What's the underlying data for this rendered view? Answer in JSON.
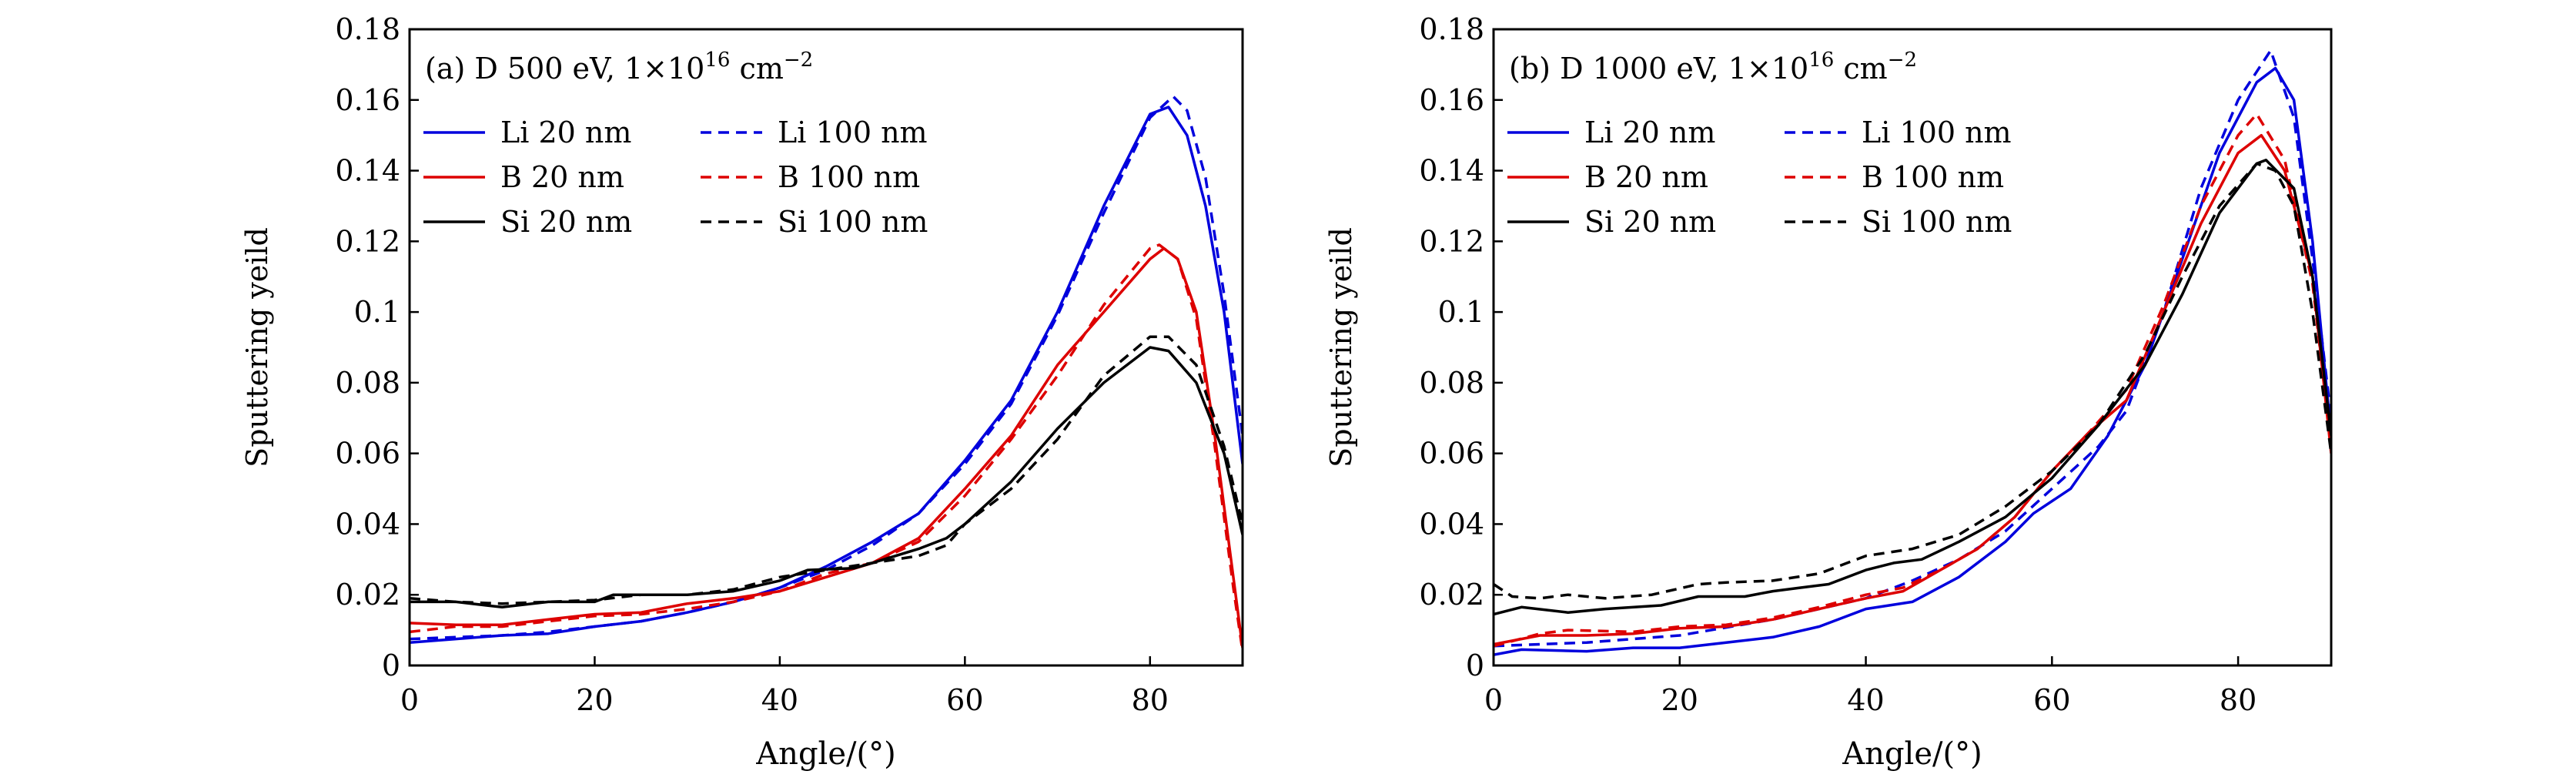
{
  "chart_data": [
    {
      "type": "line",
      "title_label": "(a)",
      "title_main": "D 500 eV, 1×10",
      "title_sup1": "16",
      "title_unit": " cm",
      "title_sup2": "−2",
      "xlabel": "Angle/(°)",
      "ylabel": "Sputtering yeild",
      "xlim": [
        0,
        90
      ],
      "ylim": [
        0,
        0.18
      ],
      "xticks": [
        0,
        20,
        40,
        60,
        80
      ],
      "yticks": [
        0,
        0.02,
        0.04,
        0.06,
        0.08,
        0.1,
        0.12,
        0.14,
        0.16,
        0.18
      ],
      "ytick_labels": [
        "0",
        "0.02",
        "0.04",
        "0.06",
        "0.08",
        "0.1",
        "0.12",
        "0.14",
        "0.16",
        "0.18"
      ],
      "grid": false,
      "legend": "top-left",
      "series": [
        {
          "name": "Li 20 nm",
          "color": "#0000dd",
          "dash": false,
          "x": [
            0,
            5,
            10,
            15,
            20,
            25,
            30,
            35,
            40,
            45,
            50,
            55,
            60,
            65,
            70,
            75,
            80,
            82,
            84,
            86,
            88,
            90
          ],
          "y": [
            0.0065,
            0.0075,
            0.0085,
            0.009,
            0.011,
            0.0125,
            0.015,
            0.018,
            0.022,
            0.028,
            0.035,
            0.043,
            0.058,
            0.075,
            0.1,
            0.13,
            0.156,
            0.158,
            0.15,
            0.13,
            0.1,
            0.057
          ]
        },
        {
          "name": "Li 100 nm",
          "color": "#0000dd",
          "dash": true,
          "x": [
            0,
            5,
            10,
            15,
            20,
            25,
            30,
            35,
            40,
            45,
            50,
            55,
            60,
            65,
            70,
            75,
            80,
            82.5,
            84,
            86,
            88,
            90
          ],
          "y": [
            0.0075,
            0.008,
            0.0085,
            0.0095,
            0.011,
            0.0125,
            0.015,
            0.018,
            0.022,
            0.027,
            0.034,
            0.043,
            0.057,
            0.074,
            0.099,
            0.128,
            0.155,
            0.161,
            0.157,
            0.138,
            0.105,
            0.065
          ]
        },
        {
          "name": "B 20 nm",
          "color": "#dd0000",
          "dash": false,
          "x": [
            0,
            5,
            10,
            15,
            20,
            25,
            30,
            35,
            40,
            45,
            50,
            55,
            60,
            65,
            70,
            75,
            80,
            81.5,
            83,
            85,
            87,
            89,
            90
          ],
          "y": [
            0.012,
            0.0115,
            0.0115,
            0.013,
            0.0145,
            0.015,
            0.0175,
            0.019,
            0.021,
            0.025,
            0.029,
            0.036,
            0.05,
            0.065,
            0.085,
            0.1,
            0.115,
            0.118,
            0.115,
            0.1,
            0.065,
            0.025,
            0.005
          ]
        },
        {
          "name": "B 100 nm",
          "color": "#dd0000",
          "dash": true,
          "x": [
            0,
            5,
            10,
            15,
            20,
            25,
            30,
            35,
            40,
            45,
            50,
            55,
            60,
            65,
            70,
            75,
            80,
            81,
            83,
            85,
            87,
            89,
            90
          ],
          "y": [
            0.0095,
            0.011,
            0.011,
            0.0125,
            0.014,
            0.0145,
            0.016,
            0.018,
            0.021,
            0.026,
            0.029,
            0.035,
            0.048,
            0.064,
            0.082,
            0.102,
            0.118,
            0.119,
            0.115,
            0.098,
            0.062,
            0.022,
            0.004
          ]
        },
        {
          "name": "Si 20 nm",
          "color": "#000000",
          "dash": false,
          "x": [
            0,
            5,
            10,
            15,
            20,
            22,
            30,
            35,
            40,
            43,
            48,
            50,
            55,
            58,
            60,
            65,
            70,
            75,
            80,
            82,
            85,
            88,
            90
          ],
          "y": [
            0.018,
            0.018,
            0.0165,
            0.018,
            0.018,
            0.02,
            0.02,
            0.021,
            0.024,
            0.027,
            0.0275,
            0.029,
            0.033,
            0.036,
            0.04,
            0.052,
            0.067,
            0.08,
            0.09,
            0.089,
            0.08,
            0.06,
            0.037
          ]
        },
        {
          "name": "Si 100 nm",
          "color": "#000000",
          "dash": true,
          "x": [
            0,
            5,
            10,
            15,
            20,
            25,
            30,
            35,
            40,
            45,
            50,
            55,
            58,
            60,
            65,
            70,
            75,
            80,
            82,
            85,
            88,
            90
          ],
          "y": [
            0.019,
            0.018,
            0.0175,
            0.018,
            0.0185,
            0.02,
            0.02,
            0.0215,
            0.025,
            0.027,
            0.029,
            0.031,
            0.034,
            0.04,
            0.05,
            0.064,
            0.082,
            0.093,
            0.093,
            0.085,
            0.062,
            0.04
          ]
        }
      ]
    },
    {
      "type": "line",
      "title_label": "(b)",
      "title_main": "D 1000 eV, 1×10",
      "title_sup1": "16",
      "title_unit": " cm",
      "title_sup2": "−2",
      "xlabel": "Angle/(°)",
      "ylabel": "Sputtering yeild",
      "xlim": [
        0,
        90
      ],
      "ylim": [
        0,
        0.18
      ],
      "xticks": [
        0,
        20,
        40,
        60,
        80
      ],
      "yticks": [
        0,
        0.02,
        0.04,
        0.06,
        0.08,
        0.1,
        0.12,
        0.14,
        0.16,
        0.18
      ],
      "ytick_labels": [
        "0",
        "0.02",
        "0.04",
        "0.06",
        "0.08",
        "0.1",
        "0.12",
        "0.14",
        "0.16",
        "0.18"
      ],
      "grid": false,
      "legend": "top-left",
      "series": [
        {
          "name": "Li 20 nm",
          "color": "#0000dd",
          "dash": false,
          "x": [
            0,
            3,
            10,
            15,
            20,
            25,
            30,
            35,
            40,
            45,
            50,
            55,
            58,
            62,
            66,
            70,
            74,
            78,
            82,
            84,
            86,
            88,
            90
          ],
          "y": [
            0.003,
            0.0045,
            0.004,
            0.005,
            0.005,
            0.0065,
            0.008,
            0.011,
            0.016,
            0.018,
            0.025,
            0.035,
            0.043,
            0.05,
            0.065,
            0.085,
            0.115,
            0.145,
            0.165,
            0.169,
            0.16,
            0.12,
            0.065
          ]
        },
        {
          "name": "Li 100 nm",
          "color": "#0000dd",
          "dash": true,
          "x": [
            0,
            10,
            20,
            30,
            40,
            45,
            50,
            55,
            60,
            65,
            68,
            72,
            76,
            80,
            83.5,
            86,
            88,
            90
          ],
          "y": [
            0.0055,
            0.0065,
            0.0085,
            0.013,
            0.019,
            0.024,
            0.03,
            0.038,
            0.05,
            0.062,
            0.072,
            0.1,
            0.135,
            0.16,
            0.174,
            0.155,
            0.115,
            0.07
          ]
        },
        {
          "name": "B 20 nm",
          "color": "#dd0000",
          "dash": false,
          "x": [
            0,
            5,
            10,
            15,
            20,
            25,
            30,
            35,
            40,
            44,
            48,
            52,
            56,
            60,
            64,
            68,
            72,
            76,
            80,
            82.5,
            85,
            88,
            90
          ],
          "y": [
            0.006,
            0.0085,
            0.0085,
            0.009,
            0.0105,
            0.011,
            0.013,
            0.016,
            0.019,
            0.021,
            0.027,
            0.033,
            0.042,
            0.055,
            0.066,
            0.075,
            0.1,
            0.125,
            0.145,
            0.15,
            0.14,
            0.11,
            0.06
          ]
        },
        {
          "name": "B 100 nm",
          "color": "#dd0000",
          "dash": true,
          "x": [
            0,
            5,
            8,
            15,
            20,
            25,
            30,
            35,
            40,
            44,
            48,
            52,
            56,
            60,
            64,
            68,
            72,
            76,
            80,
            82,
            85,
            88,
            90
          ],
          "y": [
            0.0055,
            0.009,
            0.01,
            0.0095,
            0.011,
            0.0115,
            0.0135,
            0.0165,
            0.02,
            0.022,
            0.027,
            0.033,
            0.042,
            0.055,
            0.066,
            0.078,
            0.102,
            0.13,
            0.15,
            0.156,
            0.143,
            0.108,
            0.062
          ]
        },
        {
          "name": "Si 20 nm",
          "color": "#000000",
          "dash": false,
          "x": [
            0,
            3,
            8,
            12,
            18,
            22,
            27,
            30,
            33,
            36,
            40,
            43,
            46,
            50,
            55,
            60,
            65,
            70,
            74,
            78,
            82,
            83,
            86,
            88,
            90
          ],
          "y": [
            0.0145,
            0.0165,
            0.015,
            0.016,
            0.017,
            0.0195,
            0.0195,
            0.021,
            0.022,
            0.023,
            0.027,
            0.029,
            0.03,
            0.035,
            0.042,
            0.053,
            0.068,
            0.085,
            0.105,
            0.128,
            0.142,
            0.143,
            0.135,
            0.11,
            0.065
          ]
        },
        {
          "name": "Si 100 nm",
          "color": "#000000",
          "dash": true,
          "x": [
            0,
            2,
            5,
            8,
            12,
            17,
            22,
            25,
            30,
            35,
            40,
            45,
            50,
            55,
            60,
            65,
            70,
            74,
            78,
            82,
            84,
            86,
            88,
            90
          ],
          "y": [
            0.023,
            0.0195,
            0.019,
            0.02,
            0.019,
            0.02,
            0.023,
            0.0235,
            0.024,
            0.026,
            0.031,
            0.033,
            0.037,
            0.045,
            0.055,
            0.068,
            0.088,
            0.11,
            0.13,
            0.142,
            0.14,
            0.13,
            0.1,
            0.06
          ]
        }
      ]
    }
  ]
}
